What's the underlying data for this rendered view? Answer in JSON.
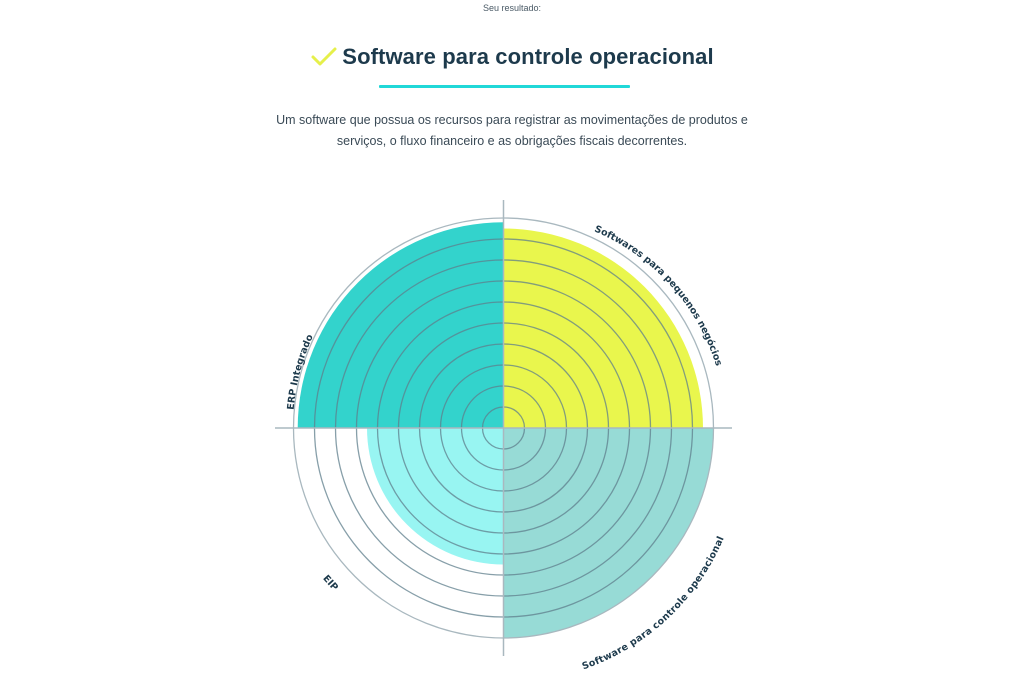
{
  "header": {
    "eyebrow": "Seu resultado:",
    "title": "Software para controle operacional",
    "check_icon": "checkmark-icon",
    "description": "Um software que possua os recursos para registrar as movimentações de produtos e serviços, o fluxo financeiro e as obrigações fiscais decorrentes."
  },
  "colors": {
    "title": "#1d3a4c",
    "check": "#e6f04a",
    "underline": "#20d8d8",
    "grid": "#8fa3ad"
  },
  "chart_data": {
    "type": "polar-area",
    "title": "",
    "rings": 10,
    "max_value": 10,
    "categories": [
      "ERP Integrado",
      "Softwares para pequenos negócios",
      "Software para controle operacional",
      "EIP"
    ],
    "values": [
      9.8,
      9.5,
      10,
      6.5
    ],
    "colors": [
      "#33d3cc",
      "#e9f64d",
      "#97dbd6",
      "#98f5f2"
    ],
    "quadrants": [
      "top-left",
      "top-right",
      "bottom-right",
      "bottom-left"
    ],
    "highlighted": "Software para controle operacional",
    "grid": true,
    "legend": "none"
  }
}
